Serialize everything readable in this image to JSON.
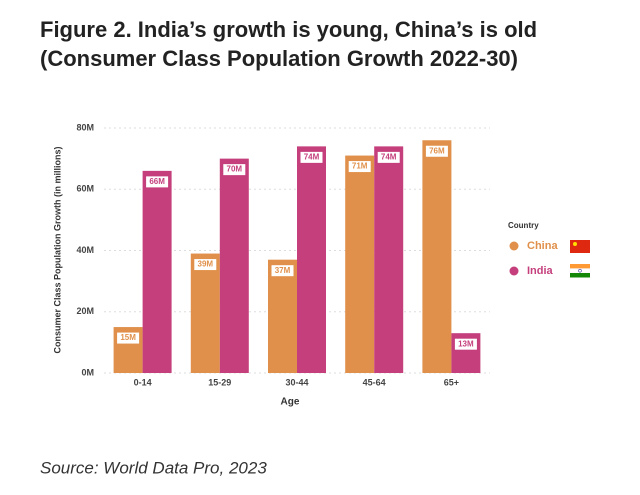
{
  "chart_data": {
    "type": "bar",
    "title": "Figure 2. India’s growth is young, China’s is old",
    "subtitle": "(Consumer Class Population Growth 2022-30)",
    "x_label": "Age",
    "y_label": "Consumer Class Population Growth (in millions)",
    "categories": [
      "0-14",
      "15-29",
      "30-44",
      "45-64",
      "65+"
    ],
    "series": [
      {
        "name": "China",
        "color": "#e0904a",
        "values": [
          15,
          39,
          37,
          71,
          76
        ],
        "value_labels": [
          "15M",
          "39M",
          "37M",
          "71M",
          "76M"
        ]
      },
      {
        "name": "India",
        "color": "#c43f7c",
        "values": [
          66,
          70,
          74,
          74,
          13
        ],
        "value_labels": [
          "66M",
          "70M",
          "74M",
          "74M",
          "13M"
        ]
      }
    ],
    "ylim": [
      0,
      80
    ],
    "yticks": [
      {
        "value": 0,
        "label": "0M"
      },
      {
        "value": 20,
        "label": "20M"
      },
      {
        "value": 40,
        "label": "40M"
      },
      {
        "value": 60,
        "label": "60M"
      },
      {
        "value": 80,
        "label": "80M"
      }
    ],
    "grid": true,
    "legend_title": "Country",
    "legend_position": "right",
    "source": "Source: World Data Pro, 2023"
  }
}
